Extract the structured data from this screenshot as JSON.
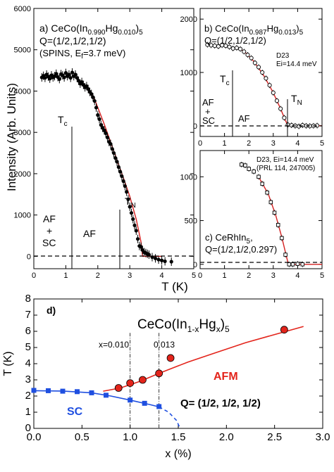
{
  "figure": {
    "xlabel_top": "T (K)",
    "ylabel_top": "Intensity (Arb. Units)"
  },
  "chart_data": [
    {
      "id": "a",
      "type": "scatter",
      "xlim": [
        0,
        5
      ],
      "ylim": [
        -300,
        6000
      ],
      "xticks": [
        0,
        1,
        2,
        3,
        4,
        5
      ],
      "yticks": [
        0,
        1000,
        2000,
        3000,
        4000,
        5000,
        6000
      ],
      "label_line1": "a) CeCo(In",
      "label_sub1": "0.990",
      "label_mid1": "Hg",
      "label_sub2": "0.010",
      "label_end1": ")",
      "label_sub3": "5",
      "label_line2": "Q=(1/2,1/2,1/2)",
      "label_line3a": "(SPINS, E",
      "label_line3sub": "f",
      "label_line3b": "=3.7 meV)",
      "tc_label": "T",
      "tc_sub": "c",
      "tn_label": "T",
      "tn_sub": "N",
      "region_af_sc": [
        "AF",
        "+",
        "SC"
      ],
      "region_af": "AF",
      "tc": 1.4,
      "tn": 3.4,
      "points": [
        [
          0.25,
          4330
        ],
        [
          0.3,
          4370
        ],
        [
          0.35,
          4320
        ],
        [
          0.4,
          4400
        ],
        [
          0.45,
          4350
        ],
        [
          0.5,
          4300
        ],
        [
          0.55,
          4380
        ],
        [
          0.6,
          4330
        ],
        [
          0.65,
          4360
        ],
        [
          0.7,
          4420
        ],
        [
          0.75,
          4340
        ],
        [
          0.8,
          4290
        ],
        [
          0.85,
          4410
        ],
        [
          0.9,
          4380
        ],
        [
          0.95,
          4330
        ],
        [
          1.0,
          4440
        ],
        [
          1.05,
          4360
        ],
        [
          1.1,
          4400
        ],
        [
          1.15,
          4320
        ],
        [
          1.2,
          4450
        ],
        [
          1.25,
          4360
        ],
        [
          1.3,
          4400
        ],
        [
          1.35,
          4320
        ],
        [
          1.4,
          4250
        ],
        [
          1.45,
          4180
        ],
        [
          1.5,
          4220
        ],
        [
          1.55,
          4150
        ],
        [
          1.6,
          4090
        ],
        [
          1.65,
          4120
        ],
        [
          1.7,
          4050
        ],
        [
          1.75,
          3980
        ],
        [
          1.8,
          3930
        ],
        [
          1.85,
          3850
        ],
        [
          1.9,
          3760
        ],
        [
          1.95,
          3600
        ],
        [
          2.0,
          3420
        ],
        [
          2.05,
          3320
        ],
        [
          2.1,
          3180
        ],
        [
          2.15,
          3110
        ],
        [
          2.2,
          3050
        ],
        [
          2.25,
          2980
        ],
        [
          2.3,
          2880
        ],
        [
          2.35,
          2770
        ],
        [
          2.4,
          2720
        ],
        [
          2.45,
          2600
        ],
        [
          2.5,
          2500
        ],
        [
          2.55,
          2380
        ],
        [
          2.6,
          2290
        ],
        [
          2.65,
          2160
        ],
        [
          2.7,
          2050
        ],
        [
          2.75,
          1940
        ],
        [
          2.8,
          1820
        ],
        [
          2.85,
          1700
        ],
        [
          2.9,
          1560
        ],
        [
          2.95,
          1380
        ],
        [
          3.0,
          1200
        ],
        [
          3.05,
          1050
        ],
        [
          3.1,
          900
        ],
        [
          3.15,
          750
        ],
        [
          3.2,
          620
        ],
        [
          3.25,
          420
        ],
        [
          3.3,
          250
        ],
        [
          3.35,
          230
        ],
        [
          3.4,
          150
        ],
        [
          3.45,
          100
        ],
        [
          3.5,
          80
        ],
        [
          3.55,
          60
        ],
        [
          3.6,
          40
        ],
        [
          3.7,
          -20
        ],
        [
          3.8,
          -50
        ],
        [
          3.9,
          -80
        ],
        [
          4.0,
          -100
        ],
        [
          4.1,
          -120
        ],
        [
          4.3,
          -130
        ]
      ],
      "fit": [
        [
          1.35,
          4300
        ],
        [
          1.6,
          4120
        ],
        [
          1.9,
          3800
        ],
        [
          2.2,
          3200
        ],
        [
          2.5,
          2550
        ],
        [
          2.8,
          1900
        ],
        [
          3.0,
          1450
        ],
        [
          3.2,
          900
        ],
        [
          3.35,
          350
        ],
        [
          3.4,
          0
        ],
        [
          4.0,
          0
        ]
      ]
    },
    {
      "id": "b",
      "type": "scatter",
      "xlim": [
        0,
        5
      ],
      "ylim": [
        -200,
        2200
      ],
      "xticks": [
        0,
        1,
        2,
        3,
        4,
        5
      ],
      "yticks": [
        0,
        1000,
        2000
      ],
      "label_line1": "b) CeCo(In",
      "label_sub1": "0.987",
      "label_mid1": "Hg",
      "label_sub2": "0.013",
      "label_end1": ")",
      "label_sub3": "5",
      "label_line2": "Q=(1/2,1/2,1/2)",
      "note1": "D23",
      "note2": "Ei=14.4 meV",
      "tc_label": "T",
      "tc_sub": "c",
      "tn_label": "T",
      "tn_sub": "N",
      "region_af_sc": [
        "AF",
        "+",
        "SC"
      ],
      "region_af": "AF",
      "tc": 1.35,
      "tn": 3.6,
      "points": [
        [
          0.3,
          1520
        ],
        [
          0.45,
          1510
        ],
        [
          0.6,
          1500
        ],
        [
          0.75,
          1490
        ],
        [
          0.9,
          1510
        ],
        [
          1.05,
          1500
        ],
        [
          1.2,
          1480
        ],
        [
          1.35,
          1450
        ],
        [
          1.5,
          1460
        ],
        [
          1.65,
          1440
        ],
        [
          1.8,
          1390
        ],
        [
          1.95,
          1330
        ],
        [
          2.1,
          1270
        ],
        [
          2.25,
          1180
        ],
        [
          2.4,
          1100
        ],
        [
          2.55,
          1000
        ],
        [
          2.7,
          890
        ],
        [
          2.85,
          760
        ],
        [
          3.0,
          620
        ],
        [
          3.15,
          470
        ],
        [
          3.3,
          320
        ],
        [
          3.45,
          150
        ],
        [
          3.6,
          20
        ],
        [
          3.75,
          10
        ],
        [
          3.9,
          0
        ],
        [
          4.05,
          -10
        ],
        [
          4.2,
          10
        ],
        [
          4.35,
          0
        ],
        [
          4.5,
          -5
        ],
        [
          4.65,
          0
        ],
        [
          4.8,
          5
        ]
      ],
      "fit": [
        [
          1.45,
          1480
        ],
        [
          1.8,
          1400
        ],
        [
          2.2,
          1210
        ],
        [
          2.6,
          950
        ],
        [
          3.0,
          620
        ],
        [
          3.3,
          320
        ],
        [
          3.5,
          100
        ],
        [
          3.6,
          0
        ],
        [
          5.0,
          0
        ]
      ]
    },
    {
      "id": "c",
      "type": "scatter",
      "xlim": [
        0,
        5
      ],
      "ylim": [
        -50,
        1300
      ],
      "xticks": [
        0,
        1,
        2,
        3,
        4,
        5
      ],
      "yticks": [
        0,
        500,
        1000
      ],
      "note1": "D23, Ei=14.4 meV",
      "note2": "(PRL 114, 247005)",
      "label_line1": "c) CeRhIn",
      "label_sub1": "5",
      "label_end1": ",",
      "label_line2": "Q=(1/2,1/2,0.297)",
      "points": [
        [
          1.7,
          1140
        ],
        [
          1.85,
          1130
        ],
        [
          2.0,
          1090
        ],
        [
          2.2,
          1060
        ],
        [
          2.4,
          1000
        ],
        [
          2.55,
          920
        ],
        [
          2.75,
          820
        ],
        [
          2.9,
          710
        ],
        [
          3.05,
          590
        ],
        [
          3.2,
          450
        ],
        [
          3.35,
          300
        ],
        [
          3.5,
          110
        ],
        [
          3.65,
          0
        ],
        [
          3.8,
          0
        ],
        [
          4.0,
          5
        ],
        [
          4.2,
          0
        ]
      ],
      "fit": [
        [
          2.4,
          1000
        ],
        [
          2.8,
          800
        ],
        [
          3.1,
          560
        ],
        [
          3.35,
          310
        ],
        [
          3.55,
          80
        ],
        [
          3.62,
          0
        ],
        [
          5.0,
          0
        ]
      ]
    },
    {
      "id": "d",
      "type": "scatter",
      "xlim": [
        0,
        3.0
      ],
      "ylim": [
        0,
        8
      ],
      "xticks": [
        0.0,
        0.5,
        1.0,
        1.5,
        2.0,
        2.5,
        3.0
      ],
      "yticks": [
        0,
        1,
        2,
        3,
        4,
        5,
        6,
        7,
        8
      ],
      "xlabel": "x (%)",
      "ylabel": "T (K)",
      "panel_tag": "d)",
      "title_a": "CeCo(In",
      "title_sub1": "1-x",
      "title_b": "Hg",
      "title_sub2": "x",
      "title_c": ")",
      "title_sub3": "5",
      "marker1_label": "x=0.010",
      "marker1_x": 1.0,
      "marker2_label": "0.013",
      "marker2_x": 1.3,
      "afm_label": "AFM",
      "sc_label": "SC",
      "q_label": "Q= (1/2, 1/2, 1/2)",
      "afm_color": "#e3241b",
      "sc_color": "#1f4fe0",
      "afm_points": [
        [
          0.88,
          2.5
        ],
        [
          1.0,
          2.8
        ],
        [
          1.13,
          3.0
        ],
        [
          1.3,
          3.4
        ],
        [
          1.42,
          4.35
        ],
        [
          2.6,
          6.1
        ]
      ],
      "afm_curve": [
        [
          0.72,
          2.3
        ],
        [
          0.9,
          2.5
        ],
        [
          1.1,
          2.9
        ],
        [
          1.3,
          3.4
        ],
        [
          1.6,
          4.1
        ],
        [
          1.9,
          4.7
        ],
        [
          2.2,
          5.3
        ],
        [
          2.5,
          5.8
        ],
        [
          2.8,
          6.3
        ]
      ],
      "sc_points": [
        [
          0.0,
          2.35
        ],
        [
          0.15,
          2.33
        ],
        [
          0.3,
          2.3
        ],
        [
          0.45,
          2.27
        ],
        [
          0.6,
          2.2
        ],
        [
          0.75,
          2.05
        ],
        [
          1.0,
          1.75
        ],
        [
          1.15,
          1.55
        ],
        [
          1.3,
          1.35
        ]
      ],
      "sc_curve": [
        [
          0.0,
          2.33
        ],
        [
          0.3,
          2.31
        ],
        [
          0.6,
          2.2
        ],
        [
          0.8,
          2.0
        ],
        [
          1.0,
          1.75
        ],
        [
          1.2,
          1.48
        ],
        [
          1.3,
          1.33
        ]
      ],
      "sc_dashed": [
        [
          1.3,
          1.33
        ],
        [
          1.4,
          1.0
        ],
        [
          1.48,
          0.5
        ],
        [
          1.52,
          0.0
        ]
      ]
    }
  ]
}
